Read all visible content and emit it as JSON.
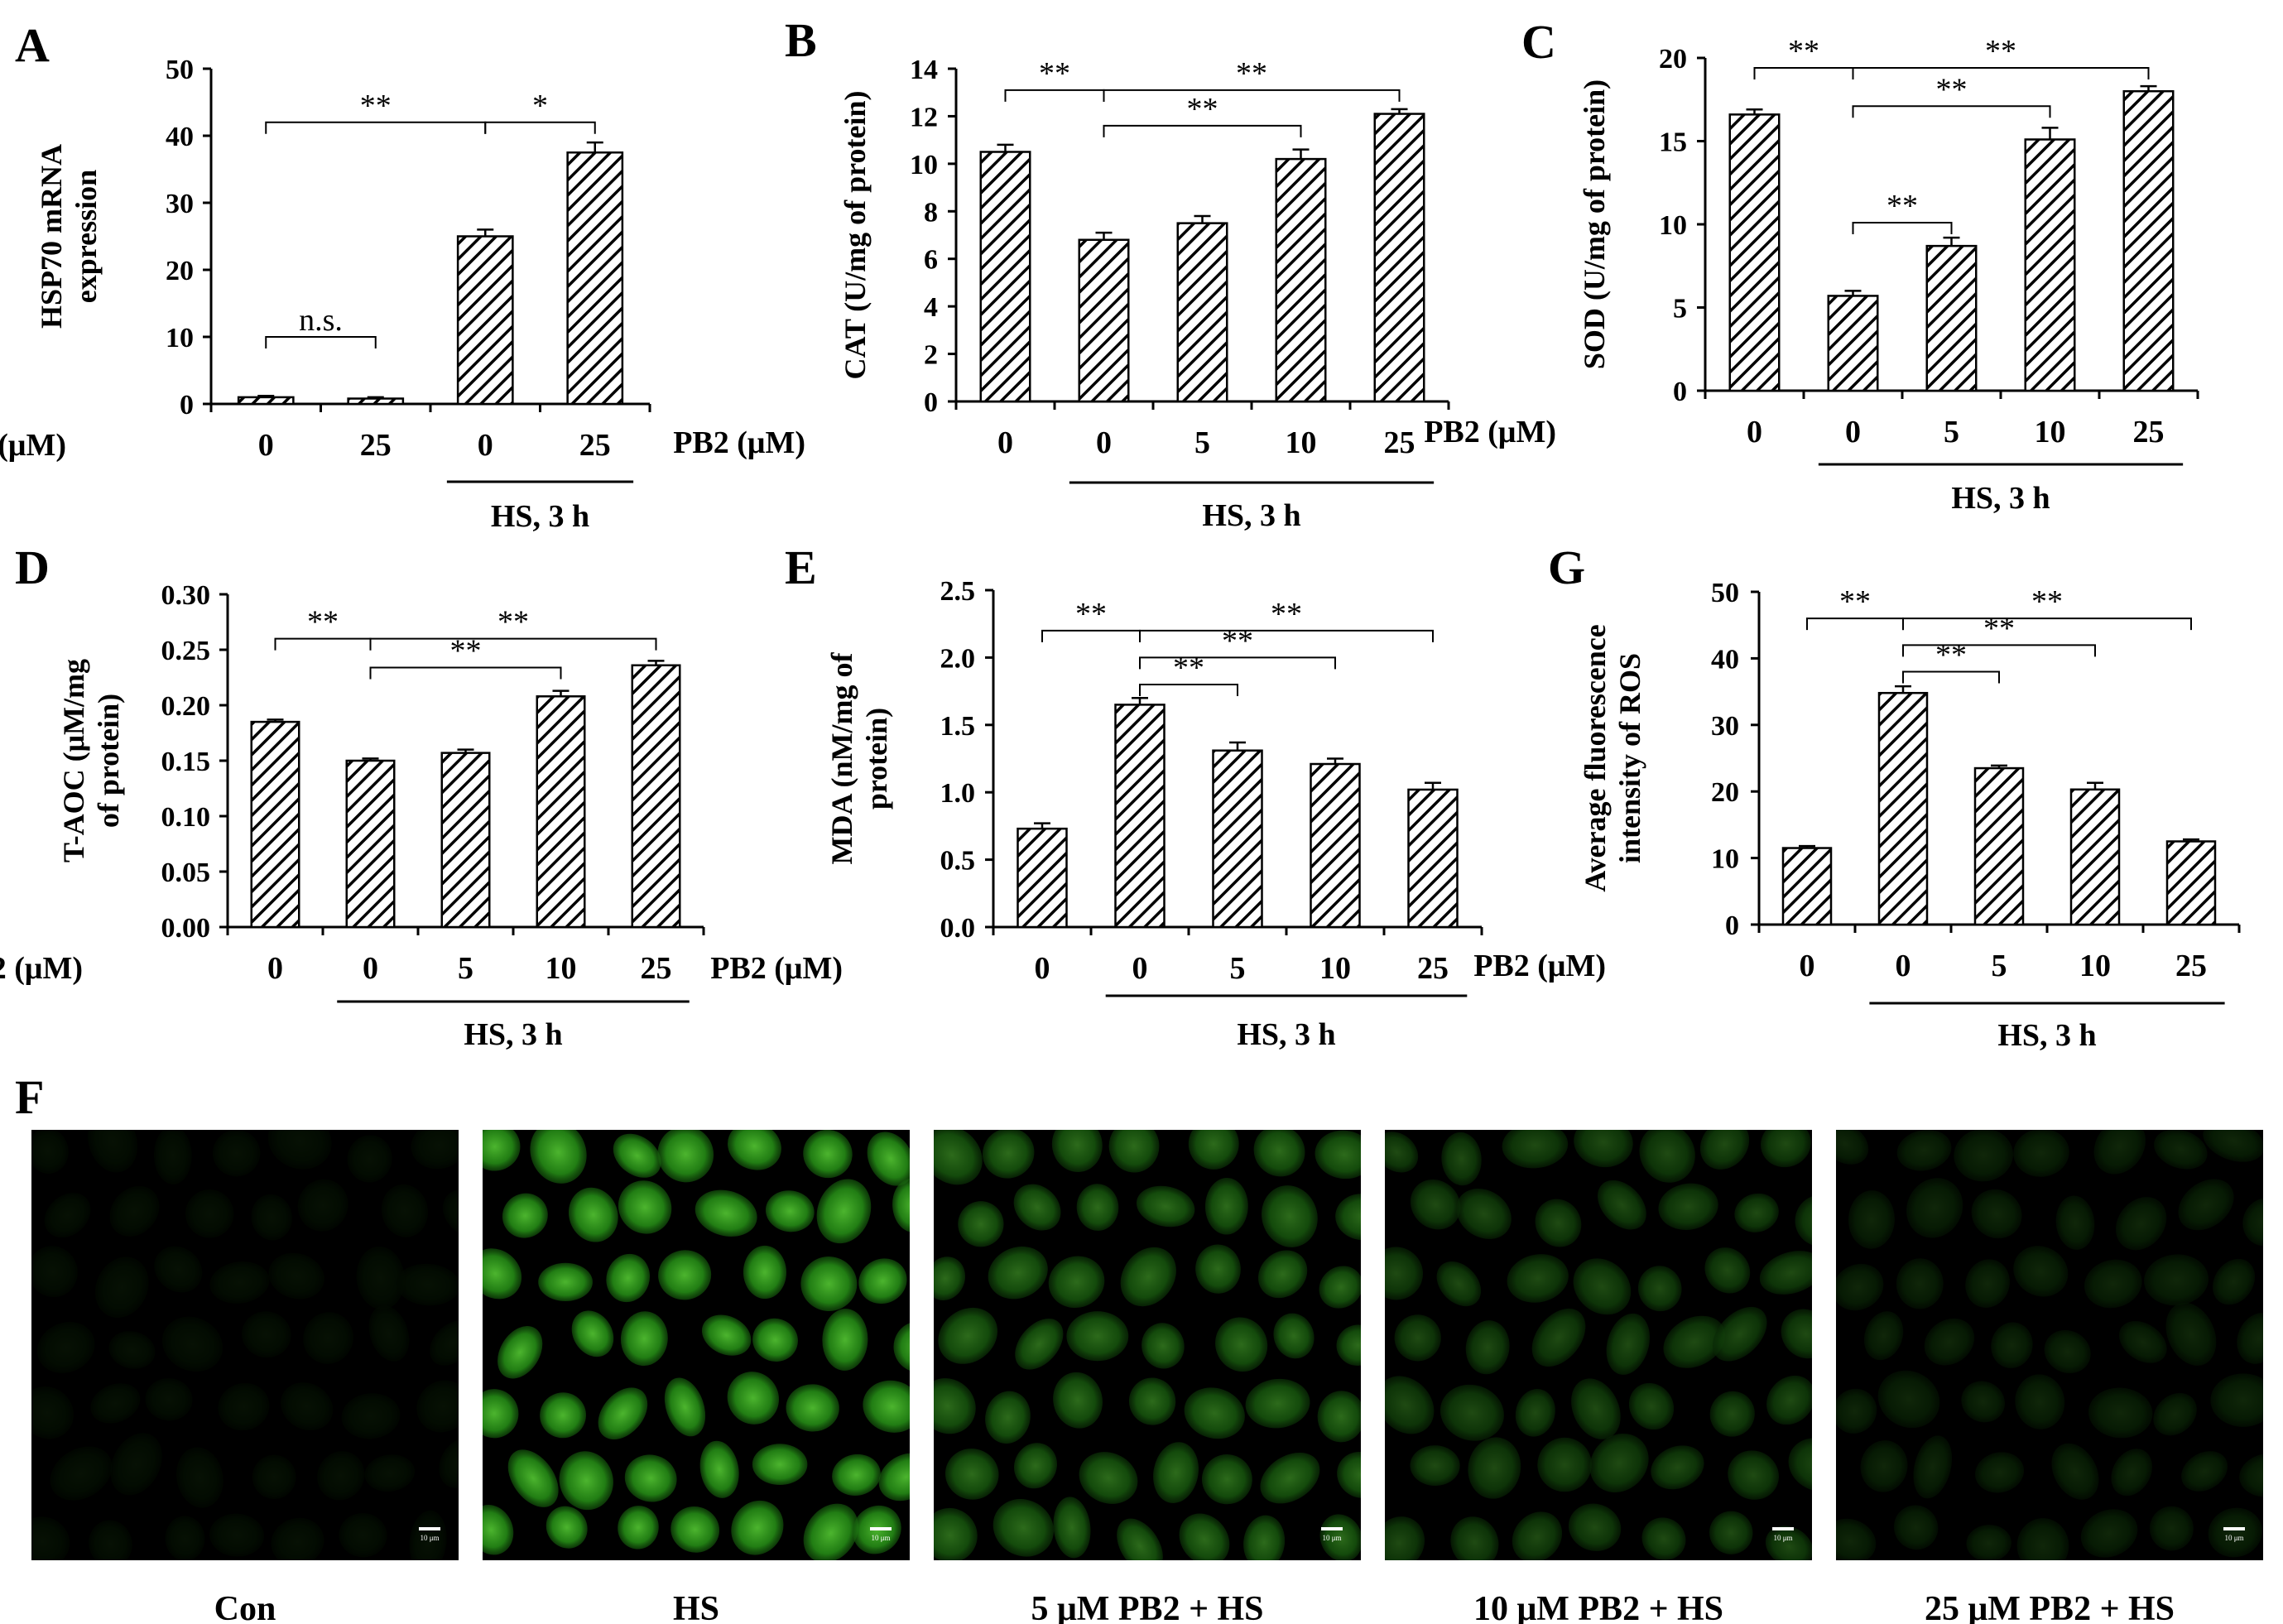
{
  "colors": {
    "ink": "#000000",
    "panel_bg": "#000000",
    "fluorescence": "#2f9f1c"
  },
  "chart_data": [
    {
      "panel": "A",
      "type": "bar",
      "ylabel": "HSP70 mRNA expression",
      "ylabel_lines": [
        "HSP70 mRNA",
        "expression"
      ],
      "ylim": [
        0,
        50
      ],
      "yticks": [
        "0",
        "10",
        "20",
        "30",
        "40",
        "50"
      ],
      "x_prefix": "PB2 (μM)",
      "categories": [
        "0",
        "25",
        "0",
        "25"
      ],
      "values": [
        1,
        0.8,
        25,
        37.5
      ],
      "errors": [
        0.2,
        0.2,
        1.0,
        1.5
      ],
      "group_label": "HS, 3 h",
      "group_range": [
        2,
        3
      ],
      "significance": [
        {
          "label": "**",
          "from": 0,
          "to": 2,
          "y": 42
        },
        {
          "label": "*",
          "from": 2,
          "to": 3,
          "y": 42
        },
        {
          "label": "n.s.",
          "from": 0,
          "to": 1,
          "y": 10
        }
      ]
    },
    {
      "panel": "B",
      "type": "bar",
      "ylabel": "CAT (U/mg of protein)",
      "ylabel_lines": [
        "CAT (U/mg of protein)"
      ],
      "ylim": [
        0,
        14
      ],
      "yticks": [
        "0",
        "2",
        "4",
        "6",
        "8",
        "10",
        "12",
        "14"
      ],
      "x_prefix": "PB2 (μM)",
      "categories": [
        "0",
        "0",
        "5",
        "10",
        "25"
      ],
      "values": [
        10.5,
        6.8,
        7.5,
        10.2,
        12.1
      ],
      "errors": [
        0.3,
        0.3,
        0.3,
        0.4,
        0.2
      ],
      "group_label": "HS, 3 h",
      "group_range": [
        1,
        4
      ],
      "significance": [
        {
          "label": "**",
          "from": 0,
          "to": 1,
          "y": 13.1
        },
        {
          "label": "**",
          "from": 1,
          "to": 4,
          "y": 13.1
        },
        {
          "label": "**",
          "from": 1,
          "to": 3,
          "y": 11.6
        }
      ]
    },
    {
      "panel": "C",
      "type": "bar",
      "ylabel": "SOD (U/mg of protein)",
      "ylabel_lines": [
        "SOD (U/mg of protein)"
      ],
      "ylim": [
        0,
        20
      ],
      "yticks": [
        "0",
        "5",
        "10",
        "15",
        "20"
      ],
      "x_prefix": "PB2 (μM)",
      "categories": [
        "0",
        "0",
        "5",
        "10",
        "25"
      ],
      "values": [
        16.6,
        5.7,
        8.7,
        15.1,
        18.0
      ],
      "errors": [
        0.3,
        0.3,
        0.5,
        0.7,
        0.3
      ],
      "group_label": "HS, 3 h",
      "group_range": [
        1,
        4
      ],
      "significance": [
        {
          "label": "**",
          "from": 0,
          "to": 1,
          "y": 19.4
        },
        {
          "label": "**",
          "from": 1,
          "to": 4,
          "y": 19.4
        },
        {
          "label": "**",
          "from": 1,
          "to": 3,
          "y": 17.1
        },
        {
          "label": "**",
          "from": 1,
          "to": 2,
          "y": 10.1
        }
      ]
    },
    {
      "panel": "D",
      "type": "bar",
      "ylabel": "T-AOC (μM/mg of protein)",
      "ylabel_lines": [
        "T-AOC (μM/mg",
        "of protein)"
      ],
      "ylim": [
        0,
        0.3
      ],
      "yticks": [
        "0.00",
        "0.05",
        "0.10",
        "0.15",
        "0.20",
        "0.25",
        "0.30"
      ],
      "x_prefix": "PB2 (μM)",
      "categories": [
        "0",
        "0",
        "5",
        "10",
        "25"
      ],
      "values": [
        0.185,
        0.15,
        0.157,
        0.208,
        0.236
      ],
      "errors": [
        0.002,
        0.002,
        0.003,
        0.005,
        0.004
      ],
      "group_label": "HS, 3 h",
      "group_range": [
        1,
        4
      ],
      "significance": [
        {
          "label": "**",
          "from": 0,
          "to": 1,
          "y": 0.26
        },
        {
          "label": "**",
          "from": 1,
          "to": 4,
          "y": 0.26
        },
        {
          "label": "**",
          "from": 1,
          "to": 3,
          "y": 0.234
        }
      ]
    },
    {
      "panel": "E",
      "type": "bar",
      "ylabel": "MDA (nM/mg of protein)",
      "ylabel_lines": [
        "MDA (nM/mg of",
        "protein)"
      ],
      "ylim": [
        0,
        2.5
      ],
      "yticks": [
        "0.0",
        "0.5",
        "1.0",
        "1.5",
        "2.0",
        "2.5"
      ],
      "x_prefix": "PB2 (μM)",
      "categories": [
        "0",
        "0",
        "5",
        "10",
        "25"
      ],
      "values": [
        0.73,
        1.65,
        1.31,
        1.21,
        1.02
      ],
      "errors": [
        0.04,
        0.05,
        0.06,
        0.04,
        0.05
      ],
      "group_label": "HS, 3 h",
      "group_range": [
        1,
        4
      ],
      "significance": [
        {
          "label": "**",
          "from": 0,
          "to": 1,
          "y": 2.2
        },
        {
          "label": "**",
          "from": 1,
          "to": 4,
          "y": 2.2
        },
        {
          "label": "**",
          "from": 1,
          "to": 3,
          "y": 2.0
        },
        {
          "label": "**",
          "from": 1,
          "to": 2,
          "y": 1.8
        }
      ]
    },
    {
      "panel": "G",
      "type": "bar",
      "ylabel": "Average fluorescence intensity of ROS",
      "ylabel_lines": [
        "Average fluorescence",
        "intensity of ROS"
      ],
      "ylim": [
        0,
        50
      ],
      "yticks": [
        "0",
        "10",
        "20",
        "30",
        "40",
        "50"
      ],
      "x_prefix": "PB2 (μM)",
      "categories": [
        "0",
        "0",
        "5",
        "10",
        "25"
      ],
      "values": [
        11.5,
        34.8,
        23.5,
        20.3,
        12.5
      ],
      "errors": [
        0.3,
        1.0,
        0.4,
        1.0,
        0.3
      ],
      "group_label": "HS, 3 h",
      "group_range": [
        1,
        4
      ],
      "significance": [
        {
          "label": "**",
          "from": 0,
          "to": 1,
          "y": 46
        },
        {
          "label": "**",
          "from": 1,
          "to": 4,
          "y": 46
        },
        {
          "label": "**",
          "from": 1,
          "to": 3,
          "y": 42
        },
        {
          "label": "**",
          "from": 1,
          "to": 2,
          "y": 38
        }
      ]
    }
  ],
  "micrographs": {
    "panel_label": "F",
    "items": [
      {
        "caption": "Con",
        "brightness": 0.08,
        "scale_bar": "10 μm"
      },
      {
        "caption": "HS",
        "brightness": 0.85,
        "scale_bar": "10 μm"
      },
      {
        "caption": "5 μM PB2 + HS",
        "brightness": 0.5,
        "scale_bar": "10 μm"
      },
      {
        "caption": "10 μM PB2 + HS",
        "brightness": 0.35,
        "scale_bar": "10 μm"
      },
      {
        "caption": "25 μM PB2 + HS",
        "brightness": 0.18,
        "scale_bar": "10 μm"
      }
    ]
  }
}
